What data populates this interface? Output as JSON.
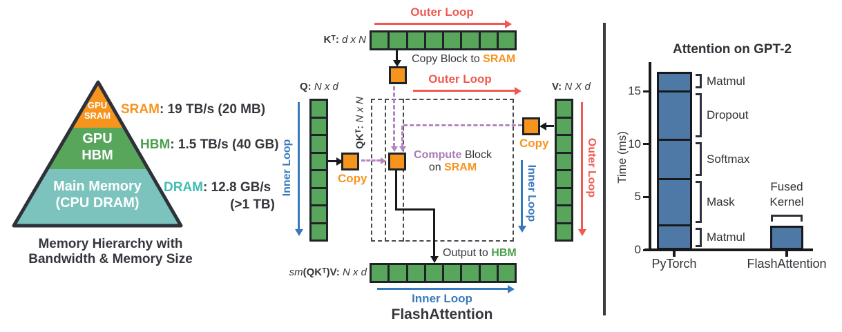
{
  "left_panel": {
    "pyramid_levels": [
      {
        "line1": "GPU",
        "line2": "SRAM",
        "color": "#F7941E"
      },
      {
        "line1": "GPU",
        "line2": "HBM",
        "color": "#58A55C"
      },
      {
        "line1": "Main Memory",
        "line2": "(CPU DRAM)",
        "color": "#7CC3BD"
      }
    ],
    "annotations": [
      {
        "keyword": "SRAM",
        "text": ": 19 TB/s (20 MB)",
        "keyword_color": "#F7941E"
      },
      {
        "keyword": "HBM",
        "text": ": 1.5 TB/s (40 GB)",
        "keyword_color": "#4A9E4D"
      },
      {
        "keyword": "DRAM",
        "text": ": 12.8 GB/s",
        "text2": "(>1 TB)",
        "keyword_color": "#3FBDB2"
      }
    ],
    "caption": [
      "Memory Hierarchy with",
      "Bandwidth & Memory Size"
    ]
  },
  "diagram": {
    "arrays": {
      "kt": {
        "name": "Kᵀ:",
        "dims": "d x N",
        "cells": 8
      },
      "q": {
        "name": "Q:",
        "dims": "N x d",
        "cells": 8
      },
      "v": {
        "name": "V:",
        "dims": "N X d",
        "cells": 8
      },
      "qkt": {
        "name": "QKᵀ:",
        "dims": "N x N"
      },
      "output": {
        "prefix": "sm",
        "name": "(QKᵀ)V:",
        "dims": "N x d",
        "cells": 8
      }
    },
    "labels": {
      "outer_loop": "Outer Loop",
      "inner_loop": "Inner Loop",
      "copy": "Copy",
      "copy_block_prefix": "Copy Block to ",
      "copy_block_keyword": "SRAM",
      "compute_keyword": "Compute",
      "compute_suffix": " Block",
      "on_prefix": "on ",
      "on_keyword": "SRAM",
      "output_prefix": "Output to ",
      "output_keyword": "HBM",
      "caption": "FlashAttention"
    },
    "colors": {
      "block_green": "#58A55C",
      "block_orange": "#F7941E",
      "loop_red": "#EF5A52",
      "loop_blue": "#3779BD",
      "compute_purple": "#A97CB8",
      "border_dark": "#1F2226"
    }
  },
  "chart_data": {
    "type": "bar",
    "stacked": true,
    "title": "Attention on GPT-2",
    "ylabel": "Time (ms)",
    "ylim": [
      0,
      17.5
    ],
    "yticks": [
      0,
      5,
      10,
      15
    ],
    "grid": false,
    "categories": [
      "PyTorch",
      "FlashAttention"
    ],
    "bar_color": "#4E79A7",
    "series": [
      {
        "category": "PyTorch",
        "segments_bottom_up": [
          {
            "label": "Matmul",
            "value": 2.3
          },
          {
            "label": "Mask",
            "value": 4.4
          },
          {
            "label": "Softmax",
            "value": 3.7
          },
          {
            "label": "Dropout",
            "value": 4.6
          },
          {
            "label": "Matmul",
            "value": 1.8
          }
        ],
        "total": 16.8
      },
      {
        "category": "FlashAttention",
        "segments_bottom_up": [
          {
            "label": "Fused Kernel",
            "value": 2.3
          }
        ],
        "total": 2.3
      }
    ],
    "annotation_lines": [
      "Fused",
      "Kernel"
    ]
  }
}
